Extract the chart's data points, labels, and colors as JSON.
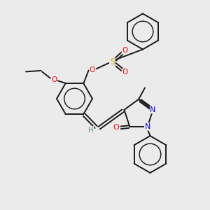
{
  "bg_color": "#ebebeb",
  "bond_color": "#1a1a1a",
  "atom_colors": {
    "O": "#ff0000",
    "N": "#0000ee",
    "S": "#ccaa00",
    "C": "#1a1a1a",
    "H": "#4a9090"
  },
  "figsize": [
    3.0,
    3.0
  ],
  "dpi": 100
}
